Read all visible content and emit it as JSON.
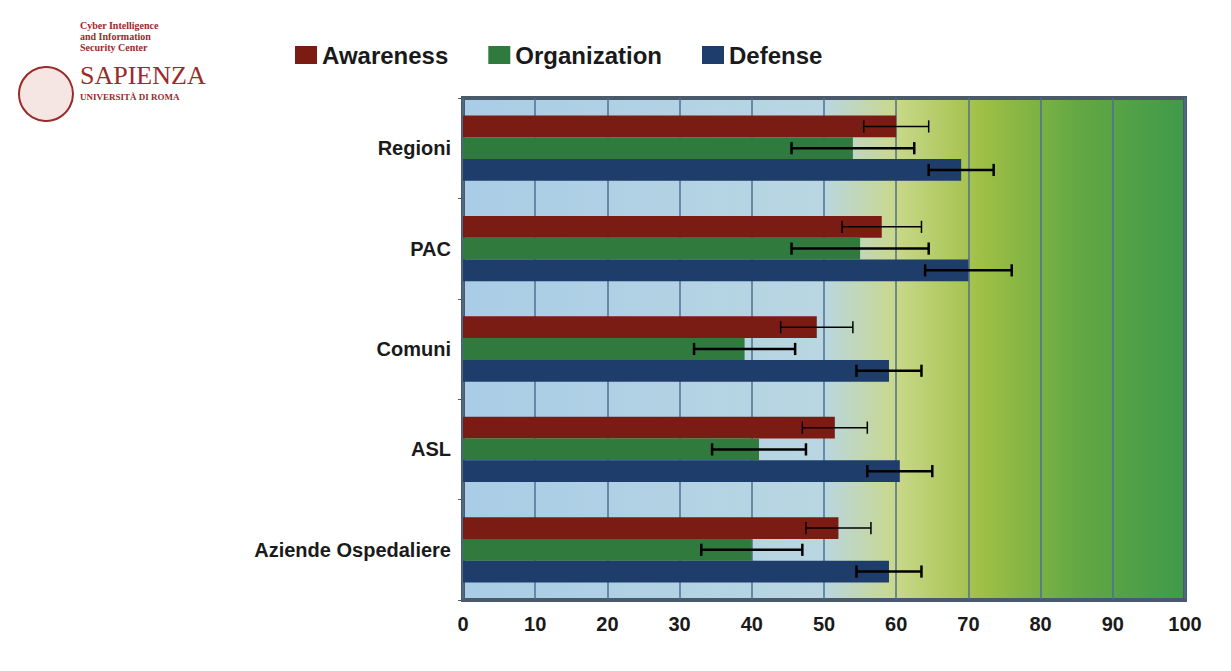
{
  "chart_data": {
    "type": "bar",
    "orientation": "horizontal",
    "annotations": [
      "Cyber Intelligence and Information Security Center",
      "Sapienza",
      "Università di Roma"
    ],
    "categories": [
      "Regioni",
      "PAC",
      "Comuni",
      "ASL",
      "Aziende Ospedaliere"
    ],
    "series": [
      {
        "name": "Awareness",
        "color": "#7a1c14",
        "values": [
          60,
          58,
          49,
          51.5,
          52
        ],
        "errors": [
          4.5,
          5.5,
          5,
          4.5,
          4.5
        ]
      },
      {
        "name": "Organization",
        "color": "#2f7a3c",
        "values": [
          54,
          55,
          39,
          41,
          40
        ],
        "errors": [
          8.5,
          9.5,
          7,
          6.5,
          7
        ]
      },
      {
        "name": "Defense",
        "color": "#1e3d6b",
        "values": [
          69,
          70,
          59,
          60.5,
          59
        ],
        "errors": [
          4.5,
          6,
          4.5,
          4.5,
          4.5
        ]
      }
    ],
    "xlim": [
      0,
      100
    ],
    "xticks": [
      0,
      10,
      20,
      30,
      40,
      50,
      60,
      70,
      80,
      90,
      100
    ],
    "grid": true,
    "legend": "top"
  }
}
